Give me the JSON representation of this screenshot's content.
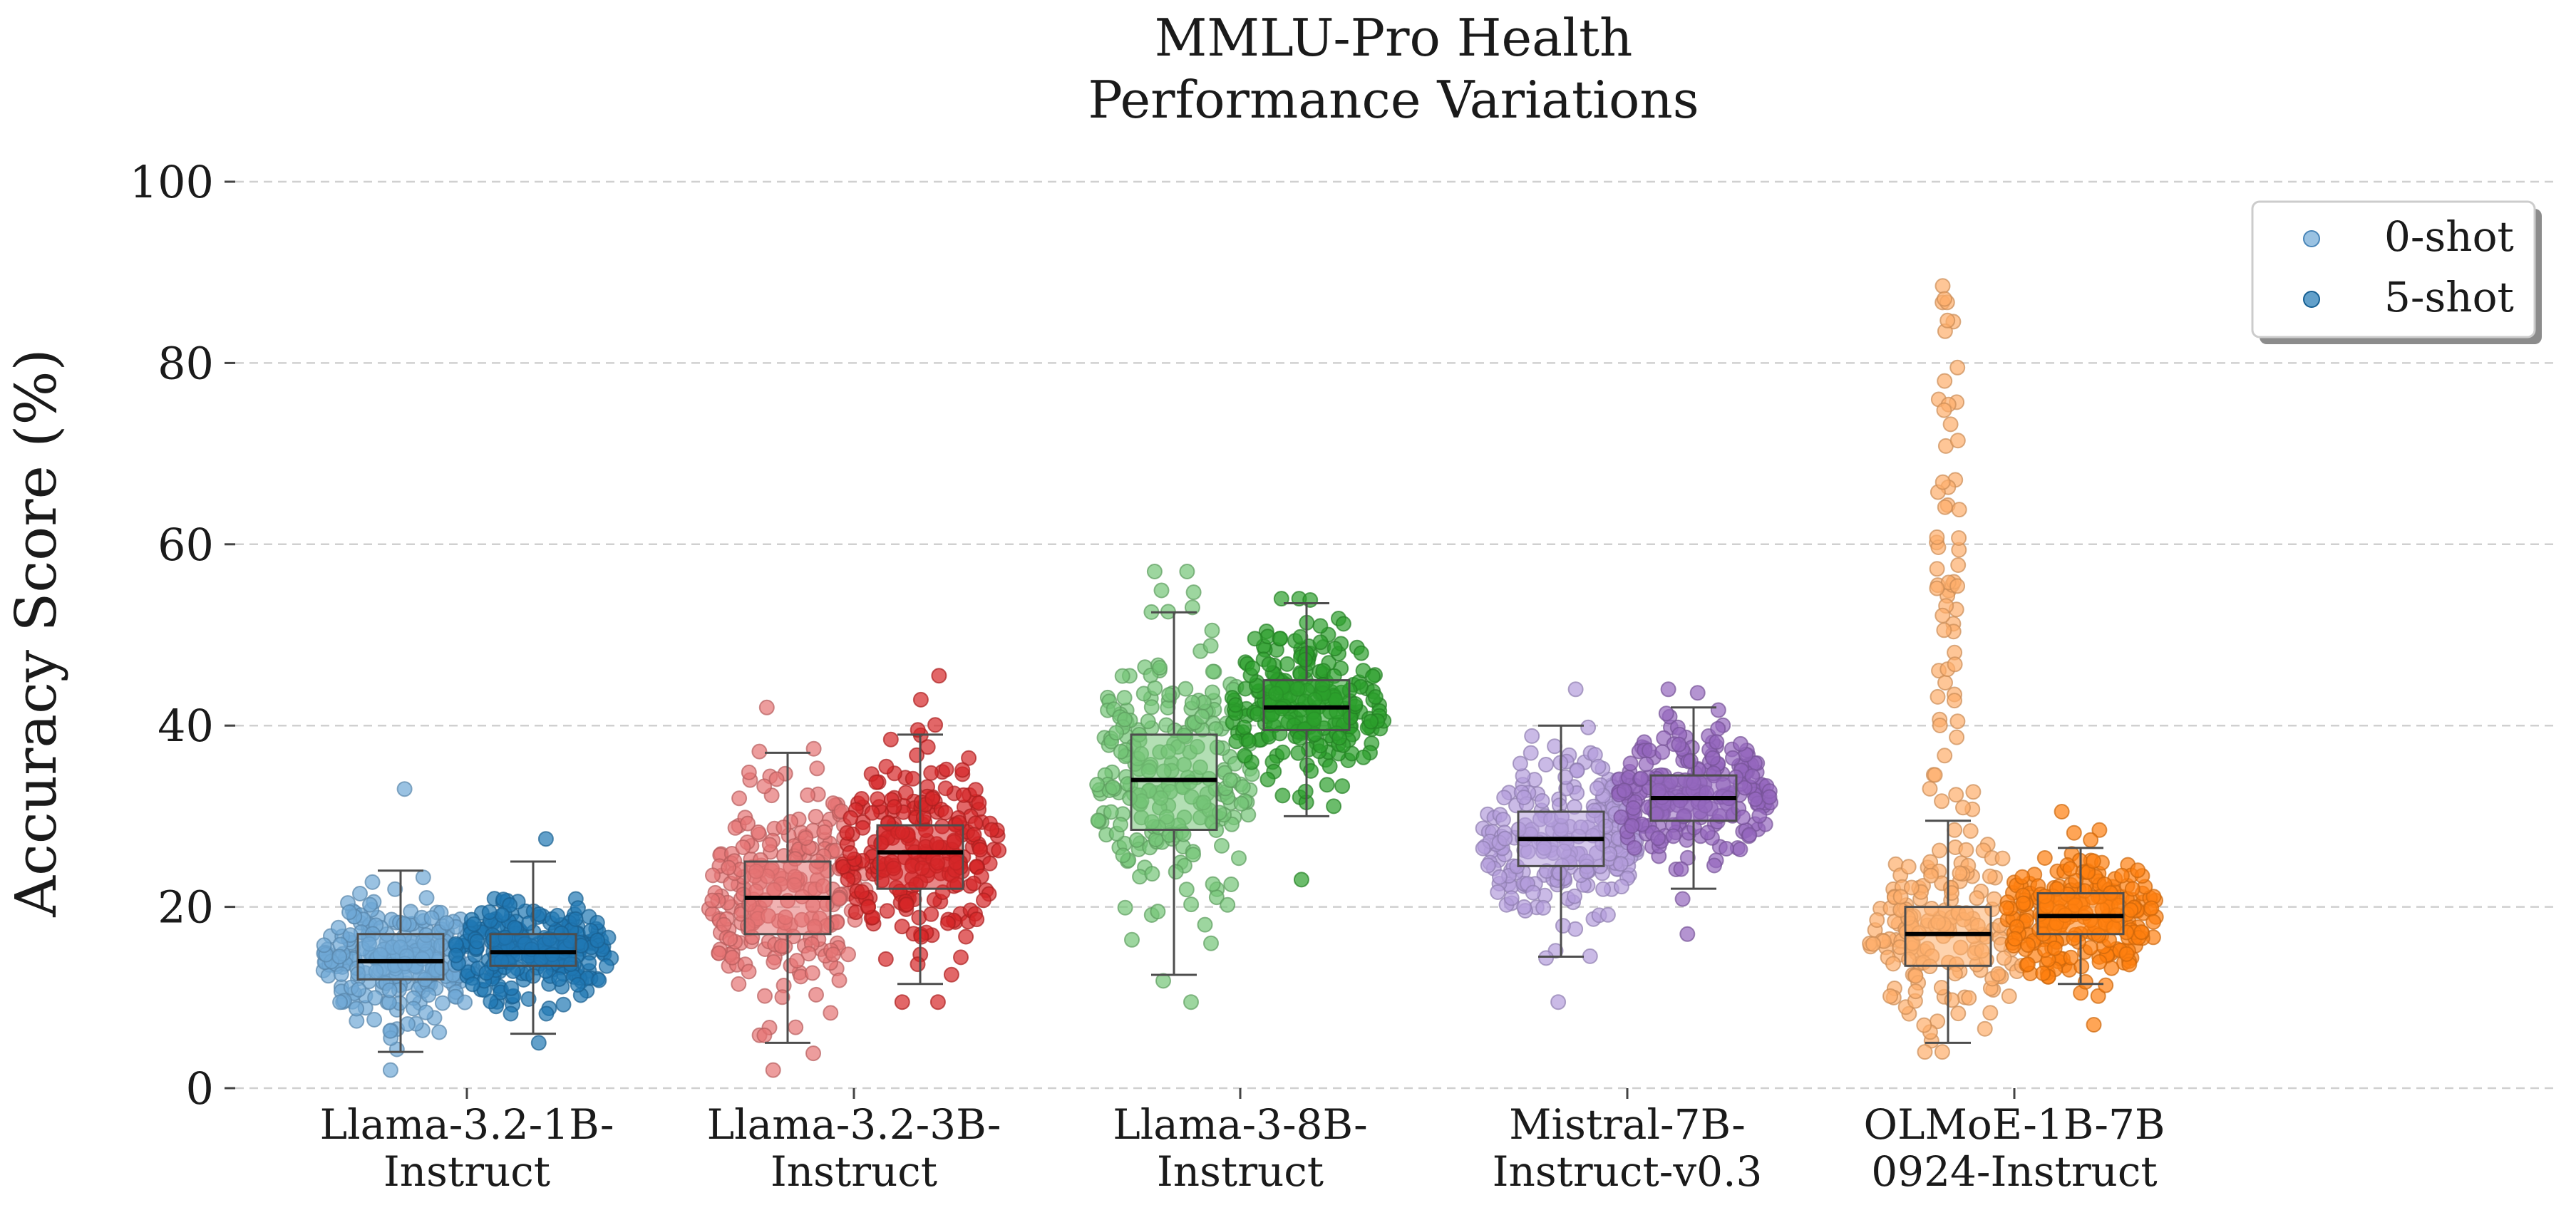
{
  "chart_data": {
    "type": "box-strip",
    "title": [
      "MMLU-Pro Health",
      "Performance Variations"
    ],
    "ylabel": "Accuracy Score (%)",
    "xlabel": "",
    "ylim": [
      0,
      100
    ],
    "yticks": [
      0,
      20,
      40,
      60,
      80,
      100
    ],
    "grid": "horizontal dashed",
    "legend": {
      "placement": "top-right",
      "entries": [
        "0-shot",
        "5-shot"
      ]
    },
    "categories": [
      [
        "Llama-3.2-1B-",
        "Instruct"
      ],
      [
        "Llama-3.2-3B-",
        "Instruct"
      ],
      [
        "Llama-3-8B-",
        "Instruct"
      ],
      [
        "Mistral-7B-",
        "Instruct-v0.3"
      ],
      [
        "OLMoE-1B-7B",
        "0924-Instruct"
      ]
    ],
    "series": [
      {
        "name": "0-shot",
        "colors": [
          "#6fa8d6",
          "#e57373",
          "#74c476",
          "#b39ddb",
          "#fdae6b"
        ],
        "boxes": [
          {
            "min": 4,
            "q1": 12,
            "median": 14,
            "q3": 17,
            "max": 24,
            "points_min": 2,
            "points_max": 33
          },
          {
            "min": 5,
            "q1": 17,
            "median": 21,
            "q3": 25,
            "max": 37,
            "points_min": 2,
            "points_max": 42
          },
          {
            "min": 12.5,
            "q1": 28.5,
            "median": 34,
            "q3": 39,
            "max": 52.5,
            "points_min": 9.5,
            "points_max": 57
          },
          {
            "min": 14.5,
            "q1": 24.5,
            "median": 27.5,
            "q3": 30.5,
            "max": 40,
            "points_min": 9.5,
            "points_max": 44
          },
          {
            "min": 5,
            "q1": 13.5,
            "median": 17,
            "q3": 20,
            "max": 29.5,
            "points_min": 4,
            "points_max": 88.5
          }
        ]
      },
      {
        "name": "5-shot",
        "colors": [
          "#1f77b4",
          "#d62728",
          "#2ca02c",
          "#9467bd",
          "#ff7f0e"
        ],
        "boxes": [
          {
            "min": 6,
            "q1": 13.5,
            "median": 15,
            "q3": 17,
            "max": 25,
            "points_min": 5,
            "points_max": 27.5
          },
          {
            "min": 11.5,
            "q1": 22,
            "median": 26,
            "q3": 29,
            "max": 39,
            "points_min": 9.5,
            "points_max": 45.5
          },
          {
            "min": 30,
            "q1": 39.5,
            "median": 42,
            "q3": 45,
            "max": 53.5,
            "points_min": 23,
            "points_max": 54
          },
          {
            "min": 22,
            "q1": 29.5,
            "median": 32,
            "q3": 34.5,
            "max": 42,
            "points_min": 17,
            "points_max": 44
          },
          {
            "min": 11.5,
            "q1": 17,
            "median": 19,
            "q3": 21.5,
            "max": 26.5,
            "points_min": 7,
            "points_max": 30.5
          }
        ]
      }
    ]
  }
}
